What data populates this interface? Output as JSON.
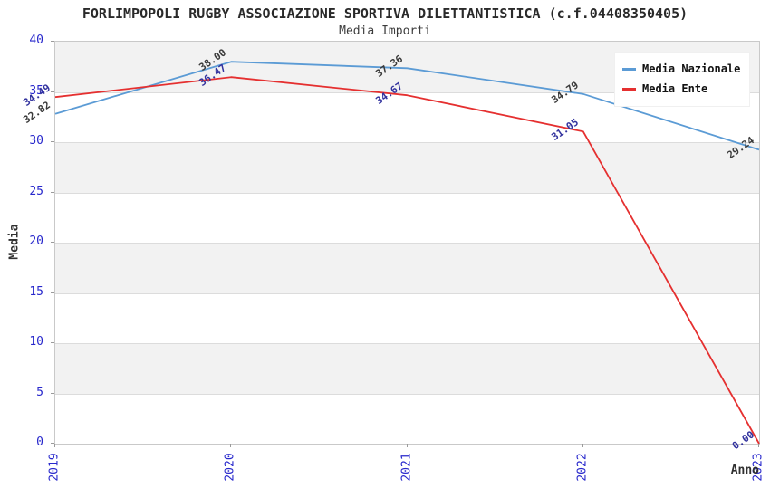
{
  "chart_data": {
    "type": "line",
    "title": "FORLIMPOPOLI RUGBY ASSOCIAZIONE SPORTIVA DILETTANTISTICA (c.f.04408350405)",
    "subtitle": "Media Importi",
    "xlabel": "Anno",
    "ylabel": "Media",
    "categories": [
      "2019",
      "2020",
      "2021",
      "2022",
      "2023"
    ],
    "ylim": [
      0,
      40
    ],
    "ytick_step": 5,
    "yticks": [
      0,
      5,
      10,
      15,
      20,
      25,
      30,
      35,
      40
    ],
    "grid": "alternating-horizontal-bands",
    "legend_position": "top-right",
    "axis_tick_color": "#2828cc",
    "band_color": "#f2f2f2",
    "gridline_color": "#dcdcdc",
    "plot_border_color": "#c9c9c9",
    "series": [
      {
        "name": "Media Nazionale",
        "color": "#5b9bd5",
        "label_color": "#3a3a3a",
        "values": [
          32.82,
          38.0,
          37.36,
          34.79,
          29.24
        ],
        "point_labels": [
          "32.82",
          "38.00",
          "37.36",
          "34.79",
          "29.24"
        ]
      },
      {
        "name": "Media Ente",
        "color": "#e53030",
        "label_color": "#32329e",
        "values": [
          34.49,
          36.47,
          34.67,
          31.05,
          0.0
        ],
        "point_labels": [
          "34.49",
          "36.47",
          "34.67",
          "31.05",
          "0.00"
        ]
      }
    ]
  }
}
